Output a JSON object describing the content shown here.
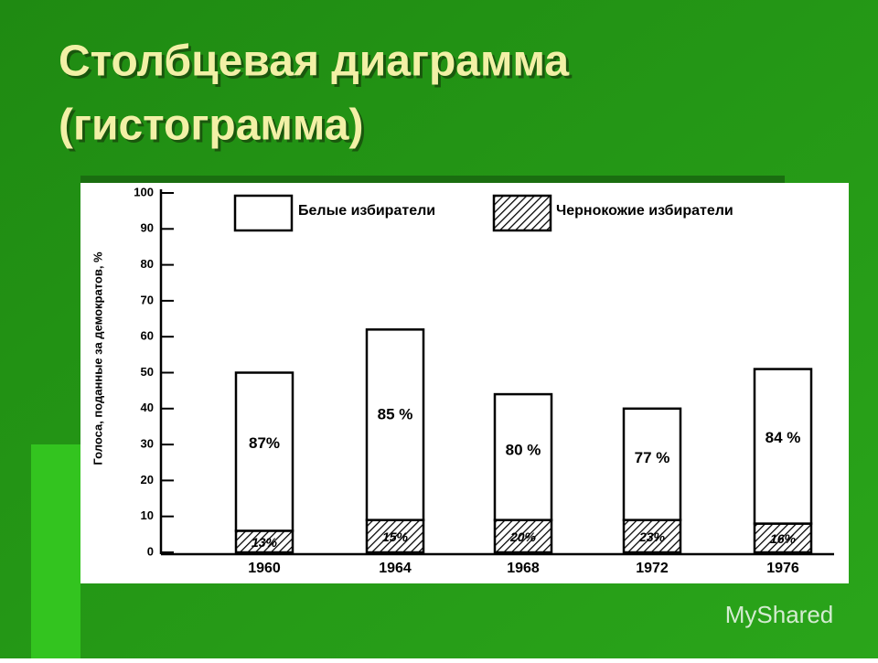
{
  "slide": {
    "title_lines": [
      "Столбцевая диаграмма",
      "(гистограмма)"
    ],
    "watermark": "MyShared"
  },
  "chart_data": {
    "type": "bar",
    "stacked": true,
    "y_label": "Голоса, поданные за демократов, %",
    "categories": [
      "1960",
      "1964",
      "1968",
      "1972",
      "1976"
    ],
    "series": [
      {
        "name": "Чернокожие избиратели",
        "color": "#000000",
        "pattern": "hatch",
        "values": [
          6,
          9,
          9,
          9,
          8
        ],
        "annotations": [
          "13%",
          "15%",
          "20%",
          "23%",
          "16%"
        ]
      },
      {
        "name": "Белые избиратели",
        "color": "#ffffff",
        "pattern": "solid",
        "values": [
          44,
          53,
          35,
          31,
          43
        ],
        "annotations": [
          "87%",
          "85 %",
          "80 %",
          "77 %",
          "84 %"
        ]
      }
    ],
    "ylim": [
      0,
      100
    ],
    "yticks": [
      0,
      10,
      20,
      30,
      40,
      50,
      60,
      70,
      80,
      90,
      100
    ]
  }
}
